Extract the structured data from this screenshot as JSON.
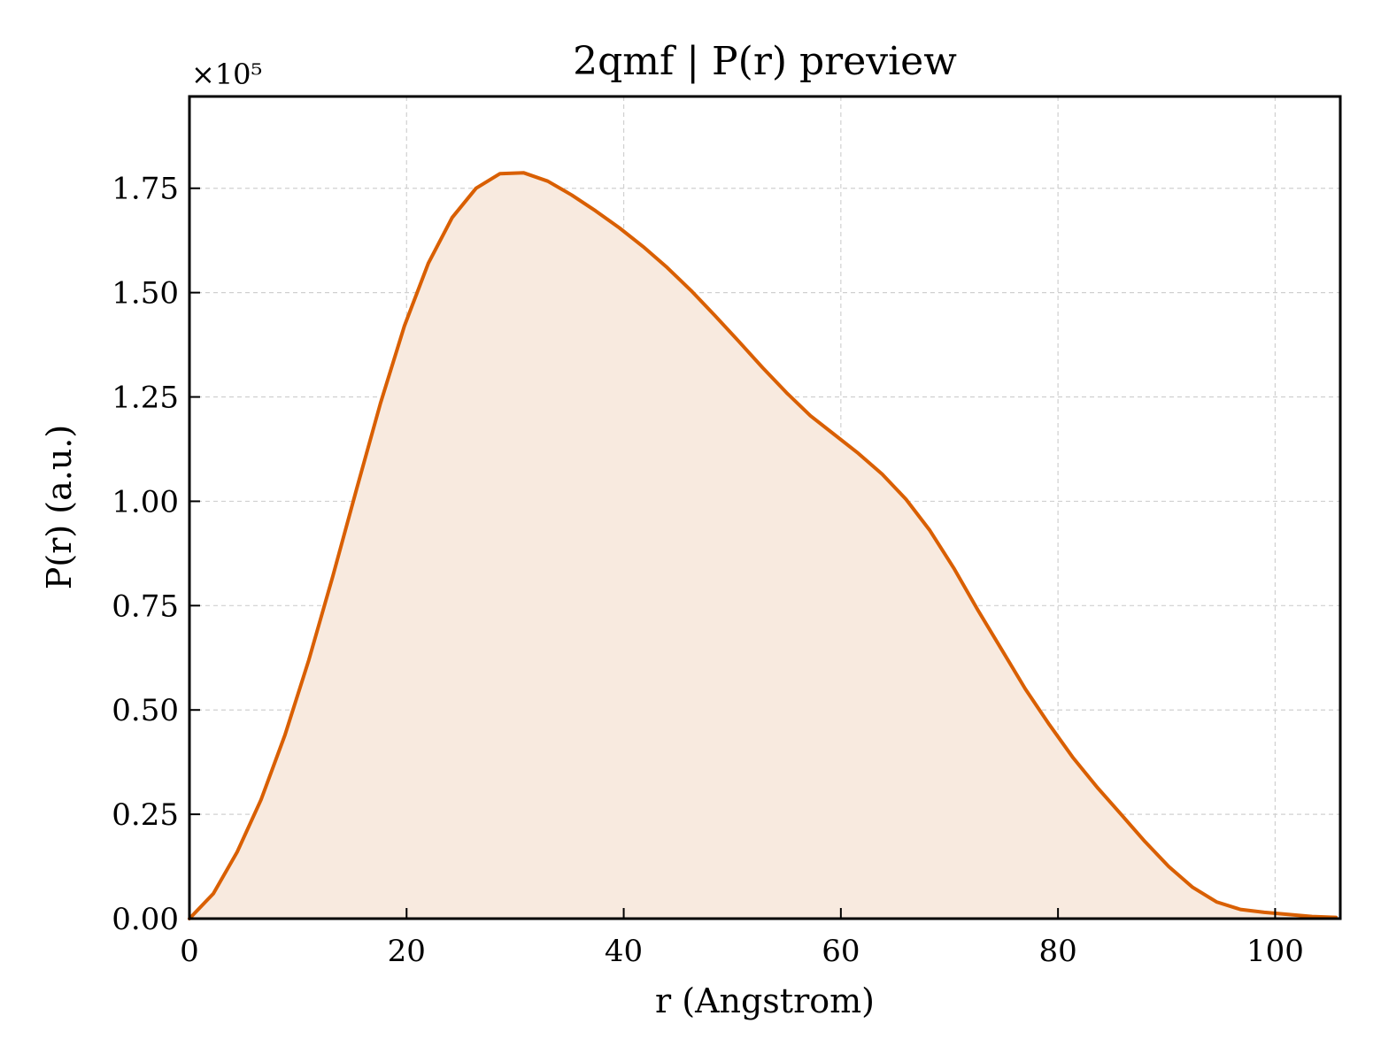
{
  "chart_data": {
    "type": "area",
    "title": "2qmf | P(r) preview",
    "xlabel": "r (Angstrom)",
    "ylabel": "P(r) (a.u.)",
    "y_offset_label": "×10⁵",
    "xlim": [
      0,
      106
    ],
    "ylim": [
      0,
      1.97
    ],
    "y_scale_factor": 100000,
    "xticks": [
      0,
      20,
      40,
      60,
      80,
      100
    ],
    "xtick_labels": [
      "0",
      "20",
      "40",
      "60",
      "80",
      "100"
    ],
    "yticks": [
      0,
      0.25,
      0.5,
      0.75,
      1.0,
      1.25,
      1.5,
      1.75
    ],
    "ytick_labels": [
      "0.00",
      "0.25",
      "0.50",
      "0.75",
      "1.00",
      "1.25",
      "1.50",
      "1.75"
    ],
    "grid": true,
    "line_color": "#d95f02",
    "fill_color": "#f8eadf",
    "series": [
      {
        "x": [
          0,
          2.2,
          4.4,
          6.6,
          8.8,
          11.0,
          13.2,
          15.4,
          17.6,
          19.8,
          22.0,
          24.2,
          26.4,
          28.6,
          30.8,
          33.0,
          35.2,
          37.4,
          39.6,
          41.8,
          44.0,
          46.2,
          48.4,
          50.6,
          52.8,
          55.0,
          57.2,
          59.4,
          61.6,
          63.8,
          66.0,
          68.2,
          70.4,
          72.6,
          74.8,
          77.0,
          79.2,
          81.4,
          83.6,
          85.8,
          88.0,
          90.2,
          92.4,
          94.6,
          96.8,
          99.0,
          101.2,
          103.4,
          105.6
        ],
        "values": [
          0.0,
          0.06,
          0.16,
          0.285,
          0.44,
          0.62,
          0.82,
          1.03,
          1.235,
          1.42,
          1.57,
          1.68,
          1.75,
          1.785,
          1.787,
          1.767,
          1.734,
          1.696,
          1.655,
          1.61,
          1.56,
          1.505,
          1.445,
          1.383,
          1.32,
          1.26,
          1.205,
          1.16,
          1.115,
          1.065,
          1.005,
          0.93,
          0.84,
          0.74,
          0.645,
          0.55,
          0.465,
          0.385,
          0.315,
          0.25,
          0.185,
          0.125,
          0.075,
          0.04,
          0.022,
          0.015,
          0.01,
          0.005,
          0.003
        ]
      }
    ]
  }
}
